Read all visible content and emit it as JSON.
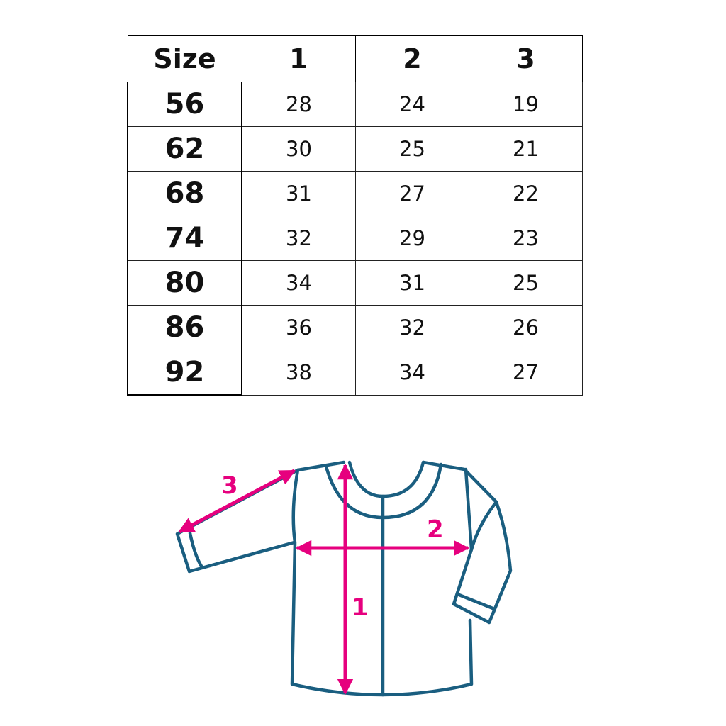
{
  "table": {
    "headers": [
      "Size",
      "1",
      "2",
      "3"
    ],
    "rows": [
      [
        "56",
        "28",
        "24",
        "19"
      ],
      [
        "62",
        "30",
        "25",
        "21"
      ],
      [
        "68",
        "31",
        "27",
        "22"
      ],
      [
        "74",
        "32",
        "29",
        "23"
      ],
      [
        "80",
        "34",
        "31",
        "25"
      ],
      [
        "86",
        "36",
        "32",
        "26"
      ],
      [
        "92",
        "38",
        "34",
        "27"
      ]
    ]
  },
  "diagram": {
    "labels": {
      "length": "1",
      "width": "2",
      "sleeve": "3"
    },
    "colors": {
      "garment": "#1a5e80",
      "arrows": "#e6007e"
    }
  }
}
